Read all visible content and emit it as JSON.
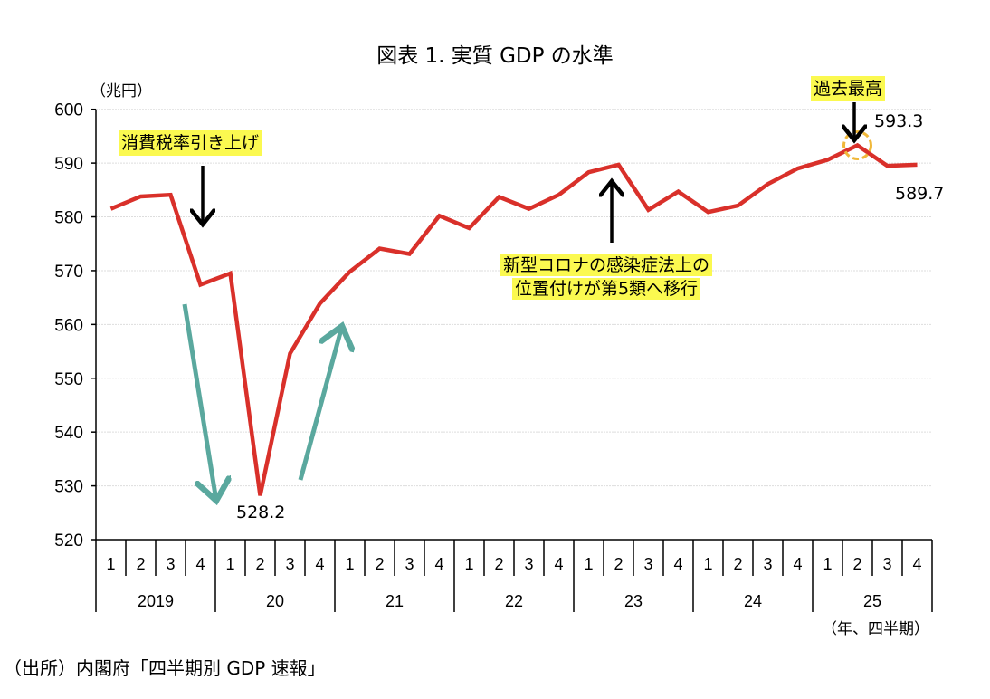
{
  "chart_data": {
    "type": "line",
    "title": "図表 1. 実質 GDP の水準",
    "ylabel": "（兆円）",
    "xlabel": "（年、四半期）",
    "ylim": [
      520,
      600
    ],
    "yticks": [
      520,
      530,
      540,
      550,
      560,
      570,
      580,
      590,
      600
    ],
    "grid": true,
    "years": [
      "2019",
      "20",
      "21",
      "22",
      "23",
      "24",
      "25"
    ],
    "quarters": [
      "1",
      "2",
      "3",
      "4"
    ],
    "series": [
      {
        "name": "実質GDP",
        "color": "#d9302a",
        "values": [
          581.5,
          583.8,
          584.1,
          567.4,
          569.5,
          528.2,
          554.6,
          563.9,
          569.8,
          574.1,
          573.1,
          580.2,
          577.9,
          583.7,
          581.5,
          584.1,
          588.3,
          589.7,
          581.3,
          584.7,
          580.9,
          582.1,
          586.1,
          589.0,
          590.6,
          593.3,
          589.5,
          589.7
        ]
      }
    ],
    "data_labels": {
      "trough": "528.2",
      "peak": "593.3",
      "last": "589.7"
    },
    "annotations": {
      "tax": "消費税率引き上げ",
      "covid_line1": "新型コロナの感染症法上の",
      "covid_line2": "位置付けが第5類へ移行",
      "record": "過去最高"
    }
  },
  "source": "（出所）内閣府「四半期別 GDP 速報」"
}
